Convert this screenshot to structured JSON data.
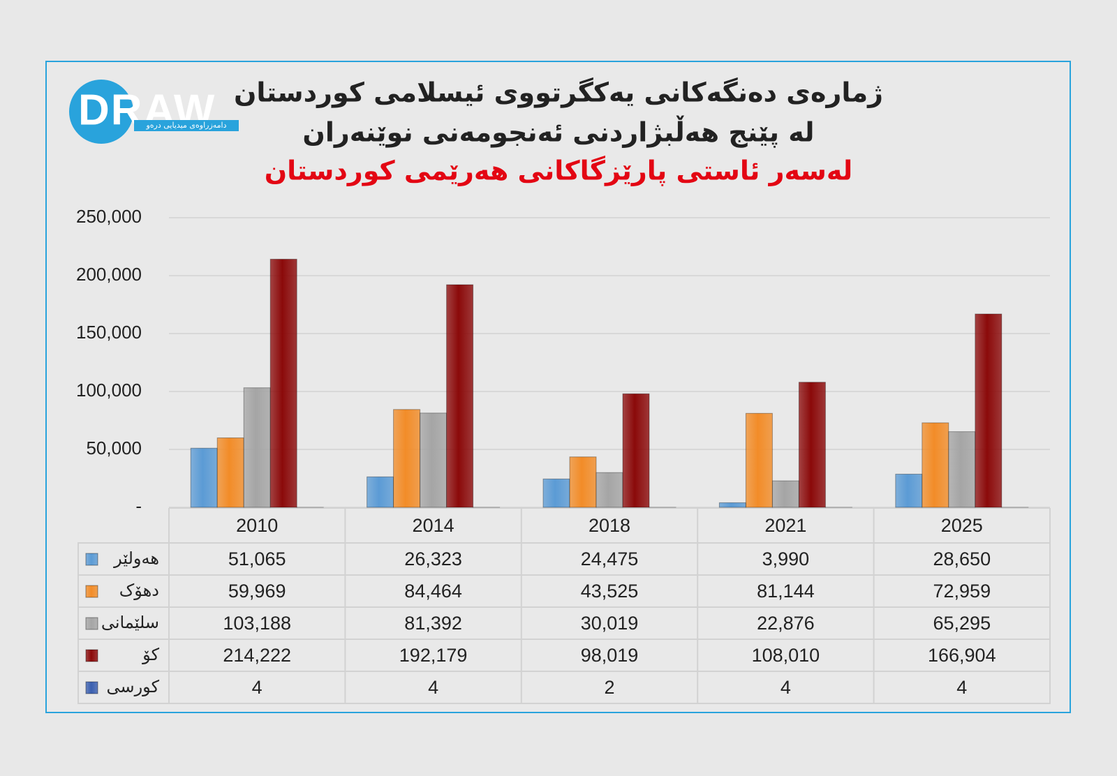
{
  "logo": {
    "text": "DRAW",
    "tagline": "دامەزراوەی میدیایی درەو"
  },
  "chart_data": {
    "type": "bar",
    "title": "ژمارەی دەنگەکانی یەکگرتووی ئیسلامی کوردستان",
    "subtitle": "لە پێنج هەڵبژاردنی ئەنجومەنی نوێنەران",
    "subtitle2": "لەسەر ئاستی پارێزگاکانی هەرێمی کوردستان",
    "categories": [
      "2010",
      "2014",
      "2018",
      "2021",
      "2025"
    ],
    "series": [
      {
        "name": "هەولێر",
        "color": "#5b9bd5",
        "values": [
          51065,
          26323,
          24475,
          3990,
          28650
        ],
        "value_labels": [
          "51,065",
          "26,323",
          "24,475",
          "3,990",
          "28,650"
        ]
      },
      {
        "name": "دهۆک",
        "color": "#f28c28",
        "values": [
          59969,
          84464,
          43525,
          81144,
          72959
        ],
        "value_labels": [
          "59,969",
          "84,464",
          "43,525",
          "81,144",
          "72,959"
        ]
      },
      {
        "name": "سلێمانی",
        "color": "#a5a5a5",
        "values": [
          103188,
          81392,
          30019,
          22876,
          65295
        ],
        "value_labels": [
          "103,188",
          "81,392",
          "30,019",
          "22,876",
          "65,295"
        ]
      },
      {
        "name": "کۆ",
        "color": "#8b0a0a",
        "values": [
          214222,
          192179,
          98019,
          108010,
          166904
        ],
        "value_labels": [
          "214,222",
          "192,179",
          "98,019",
          "108,010",
          "166,904"
        ]
      },
      {
        "name": "کورسی",
        "color": "#3a5fb0",
        "values": [
          4,
          4,
          2,
          4,
          4
        ]
      }
    ],
    "ylim": [
      0,
      250000
    ],
    "yticks": [
      {
        "value": 0,
        "label": "-"
      },
      {
        "value": 50000,
        "label": "50,000"
      },
      {
        "value": 100000,
        "label": "100,000"
      },
      {
        "value": 150000,
        "label": "150,000"
      },
      {
        "value": 200000,
        "label": "200,000"
      },
      {
        "value": 250000,
        "label": "250,000"
      }
    ],
    "grid": true
  }
}
